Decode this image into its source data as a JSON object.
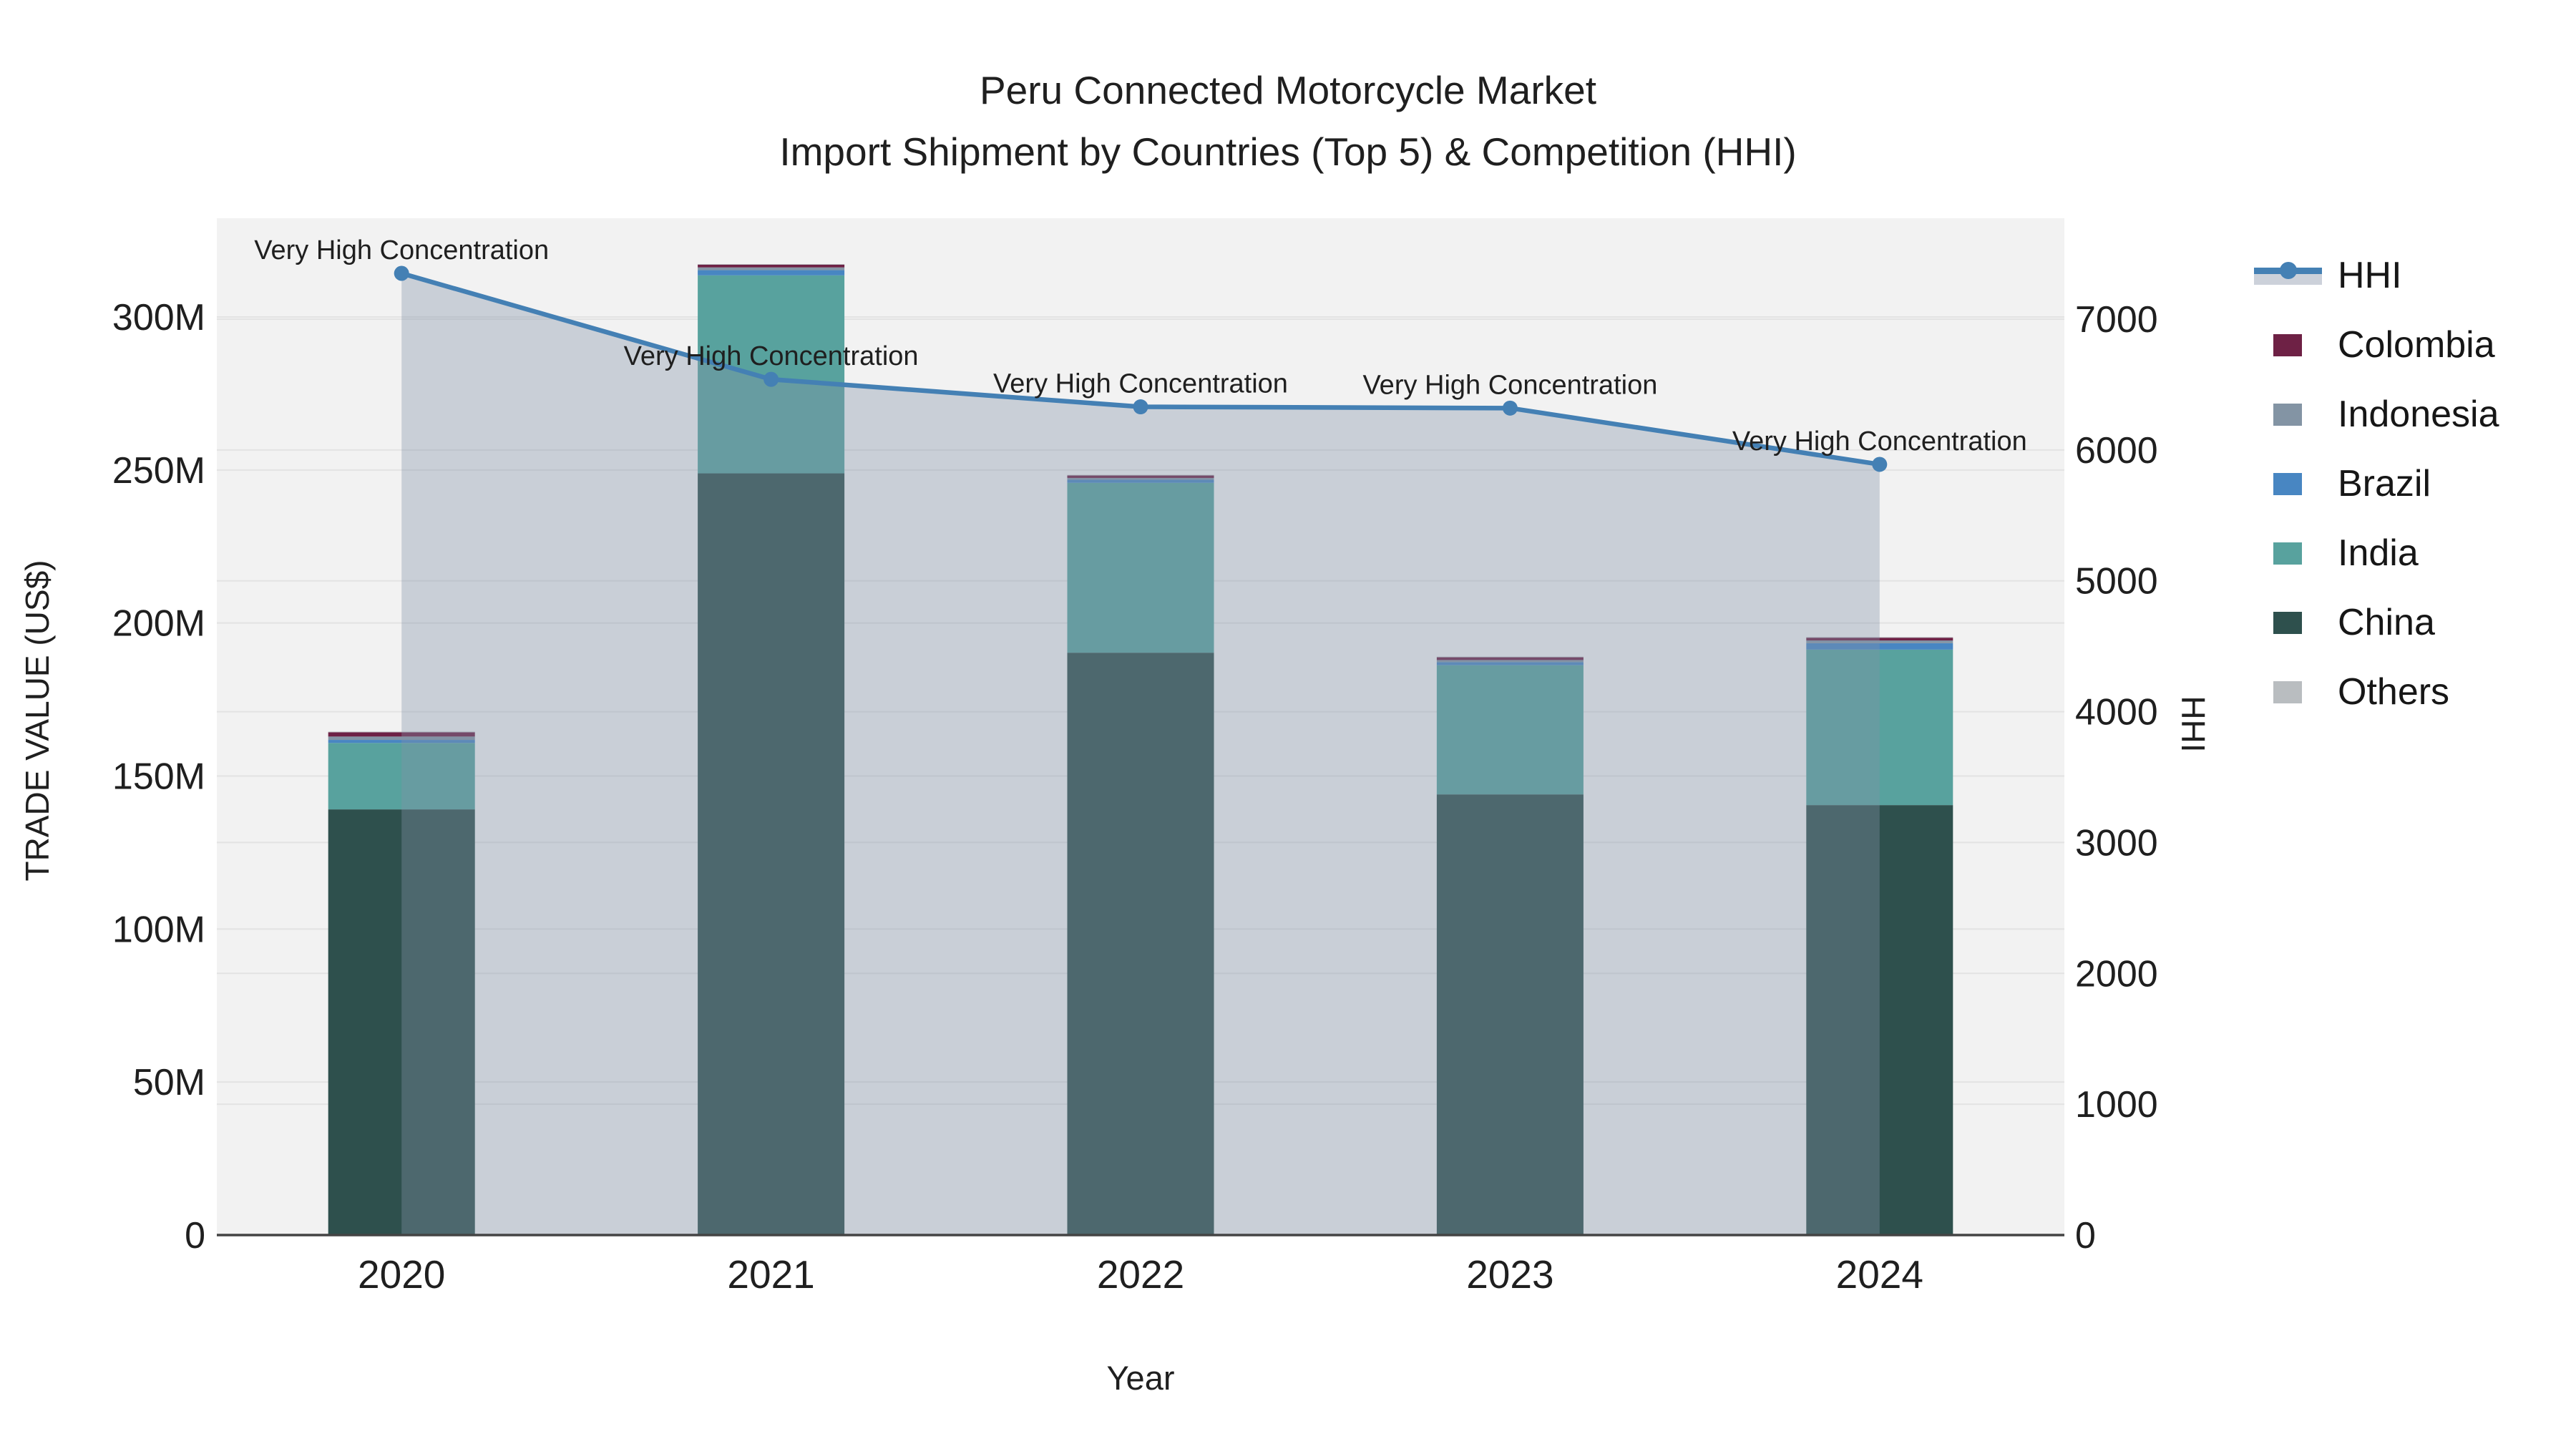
{
  "chart_data": {
    "type": "bar",
    "title": "Peru Connected Motorcycle Market",
    "subtitle": "Import Shipment by Countries (Top 5) & Competition (HHI)",
    "xlabel": "Year",
    "ylabel": "TRADE VALUE (US$)",
    "ylabel2": "HHI",
    "categories": [
      "2020",
      "2021",
      "2022",
      "2023",
      "2024"
    ],
    "stack_bottom_to_top": [
      "China",
      "India",
      "Brazil",
      "Indonesia",
      "Colombia",
      "Others"
    ],
    "series": [
      {
        "name": "Colombia",
        "color": "#6e2145",
        "values_musd": [
          1.4,
          0.9,
          0.8,
          0.9,
          0.9
        ]
      },
      {
        "name": "Indonesia",
        "color": "#8394a4",
        "values_musd": [
          1.1,
          0.9,
          0.6,
          0.7,
          0.9
        ]
      },
      {
        "name": "Brazil",
        "color": "#4886c2",
        "values_musd": [
          1.0,
          1.7,
          1.0,
          1.0,
          2.1
        ]
      },
      {
        "name": "India",
        "color": "#58a29e",
        "values_musd": [
          21.7,
          64.7,
          55.5,
          42.2,
          50.8
        ]
      },
      {
        "name": "China",
        "color": "#2e504d",
        "values_musd": [
          139.1,
          248.9,
          190.3,
          144.0,
          140.5
        ]
      },
      {
        "name": "Others",
        "color": "#b9bdc0",
        "values_musd": [
          0.2,
          0.2,
          0.2,
          0.2,
          0.2
        ]
      }
    ],
    "hhi": {
      "name": "HHI",
      "line_color": "#4480b4",
      "fill_color": "rgba(131,146,168,0.37)",
      "values": [
        7350,
        6540,
        6330,
        6320,
        5890
      ]
    },
    "annotation_text": "Very High Concentration",
    "annotations": [
      {
        "year": "2020",
        "text": "Very High Concentration"
      },
      {
        "year": "2021",
        "text": "Very High Concentration"
      },
      {
        "year": "2022",
        "text": "Very High Concentration"
      },
      {
        "year": "2023",
        "text": "Very High Concentration"
      },
      {
        "year": "2024",
        "text": "Very High Concentration"
      }
    ],
    "left_axis": {
      "tick_labels": [
        "0",
        "50M",
        "100M",
        "150M",
        "200M",
        "250M",
        "300M"
      ],
      "tick_values_musd": [
        0,
        50,
        100,
        150,
        200,
        250,
        300
      ]
    },
    "right_axis": {
      "tick_labels": [
        "0",
        "1000",
        "2000",
        "3000",
        "4000",
        "5000",
        "6000",
        "7000"
      ],
      "tick_values": [
        0,
        1000,
        2000,
        3000,
        4000,
        5000,
        6000,
        7000
      ]
    },
    "legend_order": [
      "HHI",
      "Colombia",
      "Indonesia",
      "Brazil",
      "India",
      "China",
      "Others"
    ],
    "legend_position": "right",
    "grid": true,
    "plot_bg_color": "#f2f2f2",
    "grid_color": "#e3e3e3",
    "axis_line_color": "#444444",
    "text_color": "#1f1f1f"
  }
}
